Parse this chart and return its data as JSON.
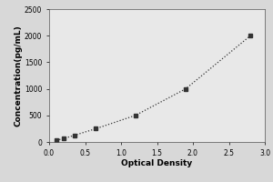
{
  "x": [
    0.1,
    0.2,
    0.35,
    0.65,
    1.2,
    1.9,
    2.8
  ],
  "y": [
    31,
    63,
    125,
    250,
    500,
    1000,
    2000
  ],
  "xlabel": "Optical Density",
  "ylabel": "Concentration(pg/mL)",
  "xlim": [
    0,
    3
  ],
  "ylim": [
    0,
    2500
  ],
  "xticks": [
    0,
    0.5,
    1,
    1.5,
    2,
    2.5,
    3
  ],
  "yticks": [
    0,
    500,
    1000,
    1500,
    2000,
    2500
  ],
  "line_color": "#333333",
  "marker": "s",
  "marker_size": 3,
  "line_style": "dotted",
  "background_color": "#d8d8d8",
  "plot_background": "#e8e8e8",
  "tick_labelsize": 5.5,
  "axis_labelsize": 6.5,
  "label_fontweight": "bold"
}
